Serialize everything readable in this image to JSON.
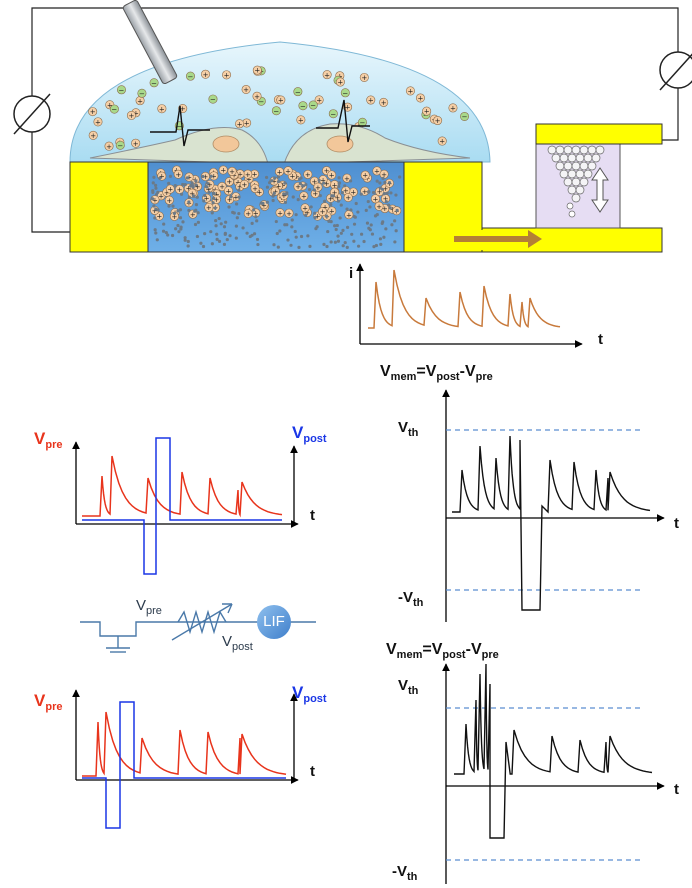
{
  "diagram": {
    "lif_label": "LIF",
    "current": {
      "axis_y": "i",
      "axis_x": "t"
    },
    "vmem_formula": {
      "main": "V",
      "main_sub": "mem",
      "eq": "=V",
      "eq_sub": "post",
      "minus": "-V",
      "minus_sub": "pre"
    },
    "vth": {
      "main": "V",
      "sub": "th"
    },
    "neg_vth": {
      "main": "-V",
      "sub": "th"
    },
    "vpre": {
      "main": "V",
      "sub": "pre"
    },
    "vpost": {
      "main": "V",
      "sub": "post"
    },
    "t_label": "t",
    "colors": {
      "yellow": "#ffff00",
      "water": "#5b9bd5",
      "dome": "#bfe6f6",
      "current_trace": "#c87a3c",
      "pre_trace": "#e8341c",
      "post_trace": "#1a36e6",
      "threshold": "#5a8ed0",
      "circuit": "#4a79a9"
    }
  }
}
